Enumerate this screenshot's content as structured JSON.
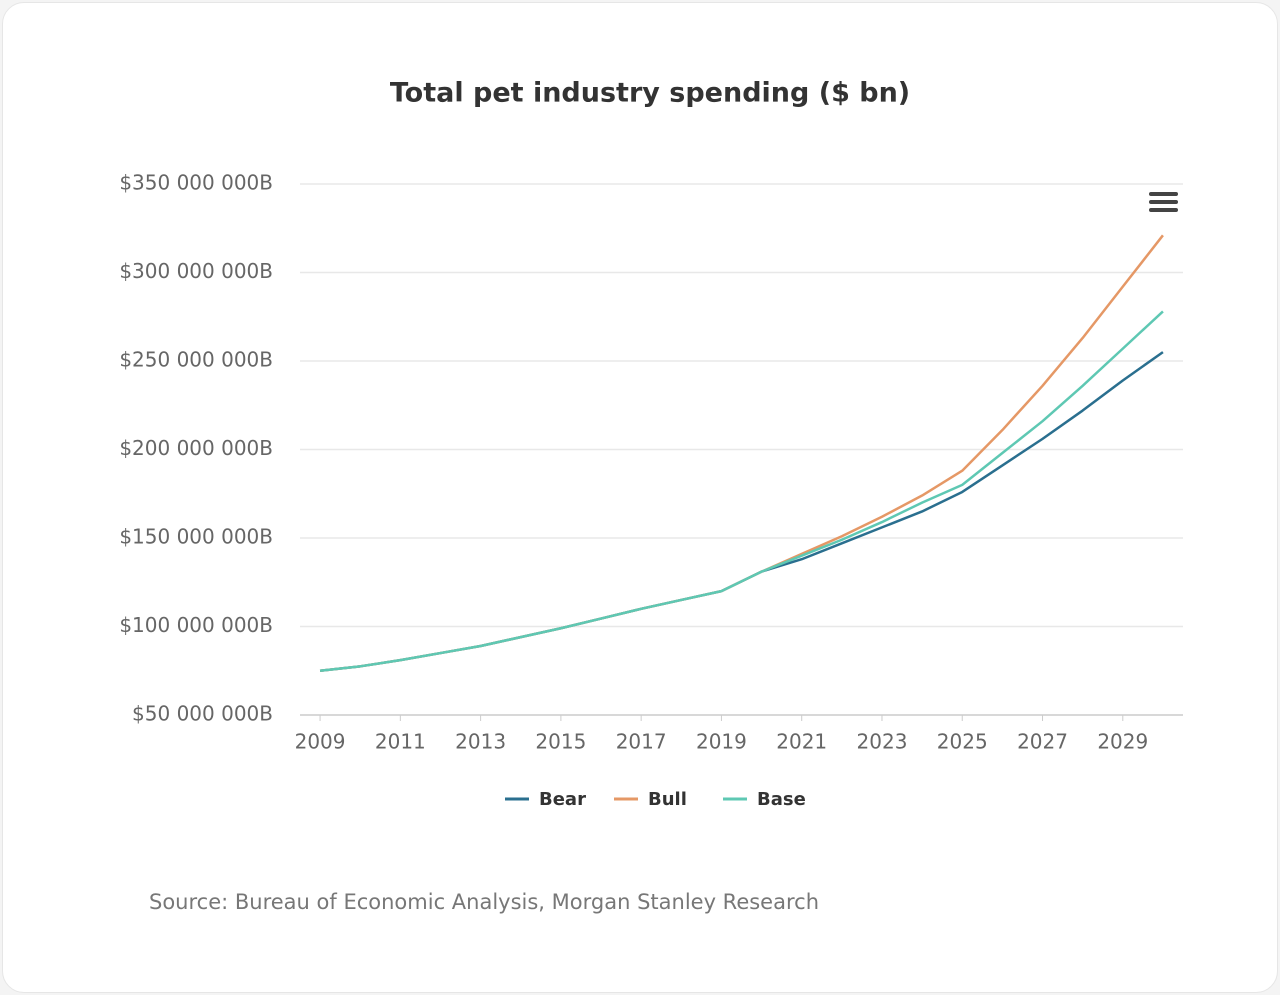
{
  "chart_data": {
    "type": "line",
    "title": "Total pet industry spending ($ bn)",
    "source": "Source: Bureau of Economic Analysis, Morgan Stanley Research",
    "x": [
      2009,
      2010,
      2011,
      2012,
      2013,
      2014,
      2015,
      2016,
      2017,
      2018,
      2019,
      2020,
      2021,
      2022,
      2023,
      2024,
      2025,
      2026,
      2027,
      2028,
      2029,
      2030
    ],
    "series": [
      {
        "name": "Bear",
        "color": "#2a6f8f",
        "values": [
          75000000,
          77500000,
          81000000,
          85000000,
          89000000,
          94000000,
          99000000,
          104500000,
          110000000,
          115000000,
          120000000,
          131000000,
          138000000,
          147000000,
          156000000,
          165000000,
          176000000,
          191000000,
          206000000,
          222000000,
          239000000,
          255000000
        ]
      },
      {
        "name": "Bull",
        "color": "#e59866",
        "values": [
          75000000,
          77500000,
          81000000,
          85000000,
          89000000,
          94000000,
          99000000,
          104500000,
          110000000,
          115000000,
          120000000,
          131000000,
          141000000,
          151000000,
          162000000,
          174000000,
          188000000,
          211000000,
          236000000,
          263000000,
          292000000,
          321000000
        ]
      },
      {
        "name": "Base",
        "color": "#5ec8b3",
        "values": [
          75000000,
          77500000,
          81000000,
          85000000,
          89000000,
          94000000,
          99000000,
          104500000,
          110000000,
          115000000,
          120000000,
          131000000,
          140000000,
          149000000,
          159000000,
          170000000,
          180000000,
          198000000,
          216000000,
          236000000,
          257000000,
          278000000
        ]
      }
    ],
    "xlim": [
      2008.5,
      2030.5
    ],
    "xticks": [
      2009,
      2011,
      2013,
      2015,
      2017,
      2019,
      2021,
      2023,
      2025,
      2027,
      2029
    ],
    "ylim": [
      50000000,
      350000000
    ],
    "yticks": [
      {
        "value": 50000000,
        "label": "$50 000 000B"
      },
      {
        "value": 100000000,
        "label": "$100 000 000B"
      },
      {
        "value": 150000000,
        "label": "$150 000 000B"
      },
      {
        "value": 200000000,
        "label": "$200 000 000B"
      },
      {
        "value": 250000000,
        "label": "$250 000 000B"
      },
      {
        "value": 300000000,
        "label": "$300 000 000B"
      },
      {
        "value": 350000000,
        "label": "$350 000 000B"
      }
    ],
    "grid": true,
    "legend": "bottom"
  }
}
